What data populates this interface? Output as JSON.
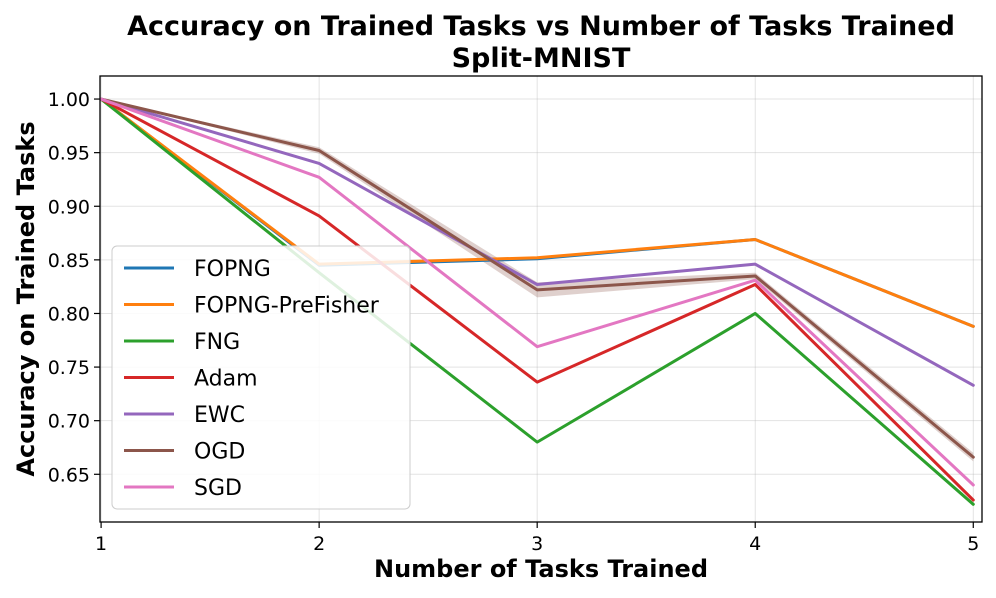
{
  "chart_data": {
    "type": "line",
    "title": "Accuracy on Trained Tasks vs Number of Tasks Trained",
    "subtitle": "Split-MNIST",
    "xlabel": "Number of Tasks Trained",
    "ylabel": "Accuracy on Trained Tasks",
    "x": [
      1,
      2,
      3,
      4,
      5
    ],
    "xlim": [
      0.995,
      5.04
    ],
    "ylim": [
      0.6055,
      1.0215
    ],
    "yticks": [
      0.65,
      0.7,
      0.75,
      0.8,
      0.85,
      0.9,
      0.95,
      1.0
    ],
    "ytick_labels": [
      "0.65",
      "0.70",
      "0.75",
      "0.80",
      "0.85",
      "0.90",
      "0.95",
      "1.00"
    ],
    "xtick_labels": [
      "1",
      "2",
      "3",
      "4",
      "5"
    ],
    "grid": true,
    "legend_position": "lower-left",
    "series": [
      {
        "name": "FOPNG",
        "color": "#1f77b4",
        "values": [
          1.0,
          0.845,
          0.851,
          0.869,
          0.788
        ]
      },
      {
        "name": "FOPNG-PreFisher",
        "color": "#ff7f0e",
        "values": [
          1.0,
          0.846,
          0.852,
          0.869,
          0.788
        ]
      },
      {
        "name": "FNG",
        "color": "#2ca02c",
        "values": [
          1.0,
          0.838,
          0.68,
          0.8,
          0.622
        ]
      },
      {
        "name": "Adam",
        "color": "#d62728",
        "values": [
          1.0,
          0.891,
          0.736,
          0.827,
          0.626
        ]
      },
      {
        "name": "EWC",
        "color": "#9467bd",
        "values": [
          1.0,
          0.94,
          0.827,
          0.846,
          0.733
        ]
      },
      {
        "name": "OGD",
        "color": "#8c564b",
        "values": [
          1.0,
          0.952,
          0.822,
          0.835,
          0.666
        ],
        "band": [
          0.0,
          0.003,
          0.007,
          0.003,
          0.004
        ]
      },
      {
        "name": "SGD",
        "color": "#e377c2",
        "values": [
          1.0,
          0.927,
          0.769,
          0.831,
          0.64
        ]
      }
    ]
  }
}
